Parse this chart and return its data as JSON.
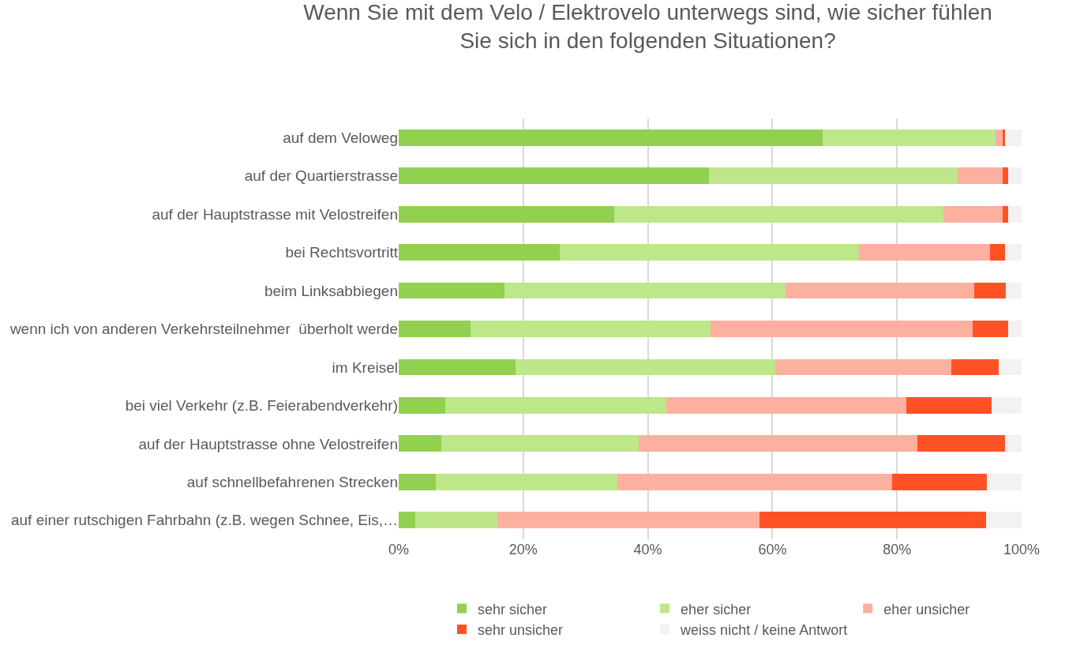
{
  "chart_data": {
    "type": "bar",
    "orientation": "horizontal",
    "stacked": true,
    "title": "Wenn Sie mit dem Velo / Elektrovelo unterwegs sind, wie sicher fühlen\nSie sich in den folgenden Situationen?",
    "categories": [
      "auf dem Veloweg",
      "auf der Quartierstrasse",
      "auf der Hauptstrasse mit Velostreifen",
      "bei Rechtsvortritt",
      "beim Linksabbiegen",
      "wenn ich von anderen Verkehrsteilnehmer  überholt werde",
      "im Kreisel",
      "bei viel Verkehr (z.B. Feierabendverkehr)",
      "auf der Hauptstrasse ohne Velostreifen",
      "auf schnellbefahrenen Strecken",
      "auf einer rutschigen Fahrbahn (z.B. wegen Schnee, Eis,…"
    ],
    "series": [
      {
        "name": "sehr sicher",
        "color": "#92d050",
        "values": [
          68.0,
          49.8,
          34.6,
          25.9,
          17.0,
          11.5,
          18.7,
          7.5,
          6.9,
          5.9,
          2.7
        ]
      },
      {
        "name": "eher sicher",
        "color": "#bde788",
        "values": [
          27.8,
          39.9,
          52.8,
          48.0,
          45.1,
          38.6,
          41.8,
          35.5,
          31.6,
          29.2,
          13.2
        ]
      },
      {
        "name": "eher unsicher",
        "color": "#fdb0a0",
        "values": [
          1.1,
          7.2,
          9.5,
          21.0,
          30.3,
          42.0,
          28.2,
          38.5,
          44.8,
          44.1,
          42.0
        ]
      },
      {
        "name": "sehr unsicher",
        "color": "#ff5224",
        "values": [
          0.4,
          1.0,
          1.0,
          2.4,
          5.1,
          5.8,
          7.6,
          13.7,
          14.0,
          15.2,
          36.4
        ]
      },
      {
        "name": "weiss nicht / keine Antwort",
        "color": "#f2f2f2",
        "values": [
          2.7,
          2.1,
          2.1,
          2.7,
          2.5,
          2.1,
          3.7,
          4.8,
          2.7,
          5.6,
          5.7
        ]
      }
    ],
    "xlim": [
      0,
      100
    ],
    "xticks": [
      {
        "value": 0,
        "label": "0%"
      },
      {
        "value": 20,
        "label": "20%"
      },
      {
        "value": 40,
        "label": "40%"
      },
      {
        "value": 60,
        "label": "60%"
      },
      {
        "value": 80,
        "label": "80%"
      },
      {
        "value": 100,
        "label": "100%"
      }
    ],
    "grid": "x",
    "legend": "bottom"
  }
}
